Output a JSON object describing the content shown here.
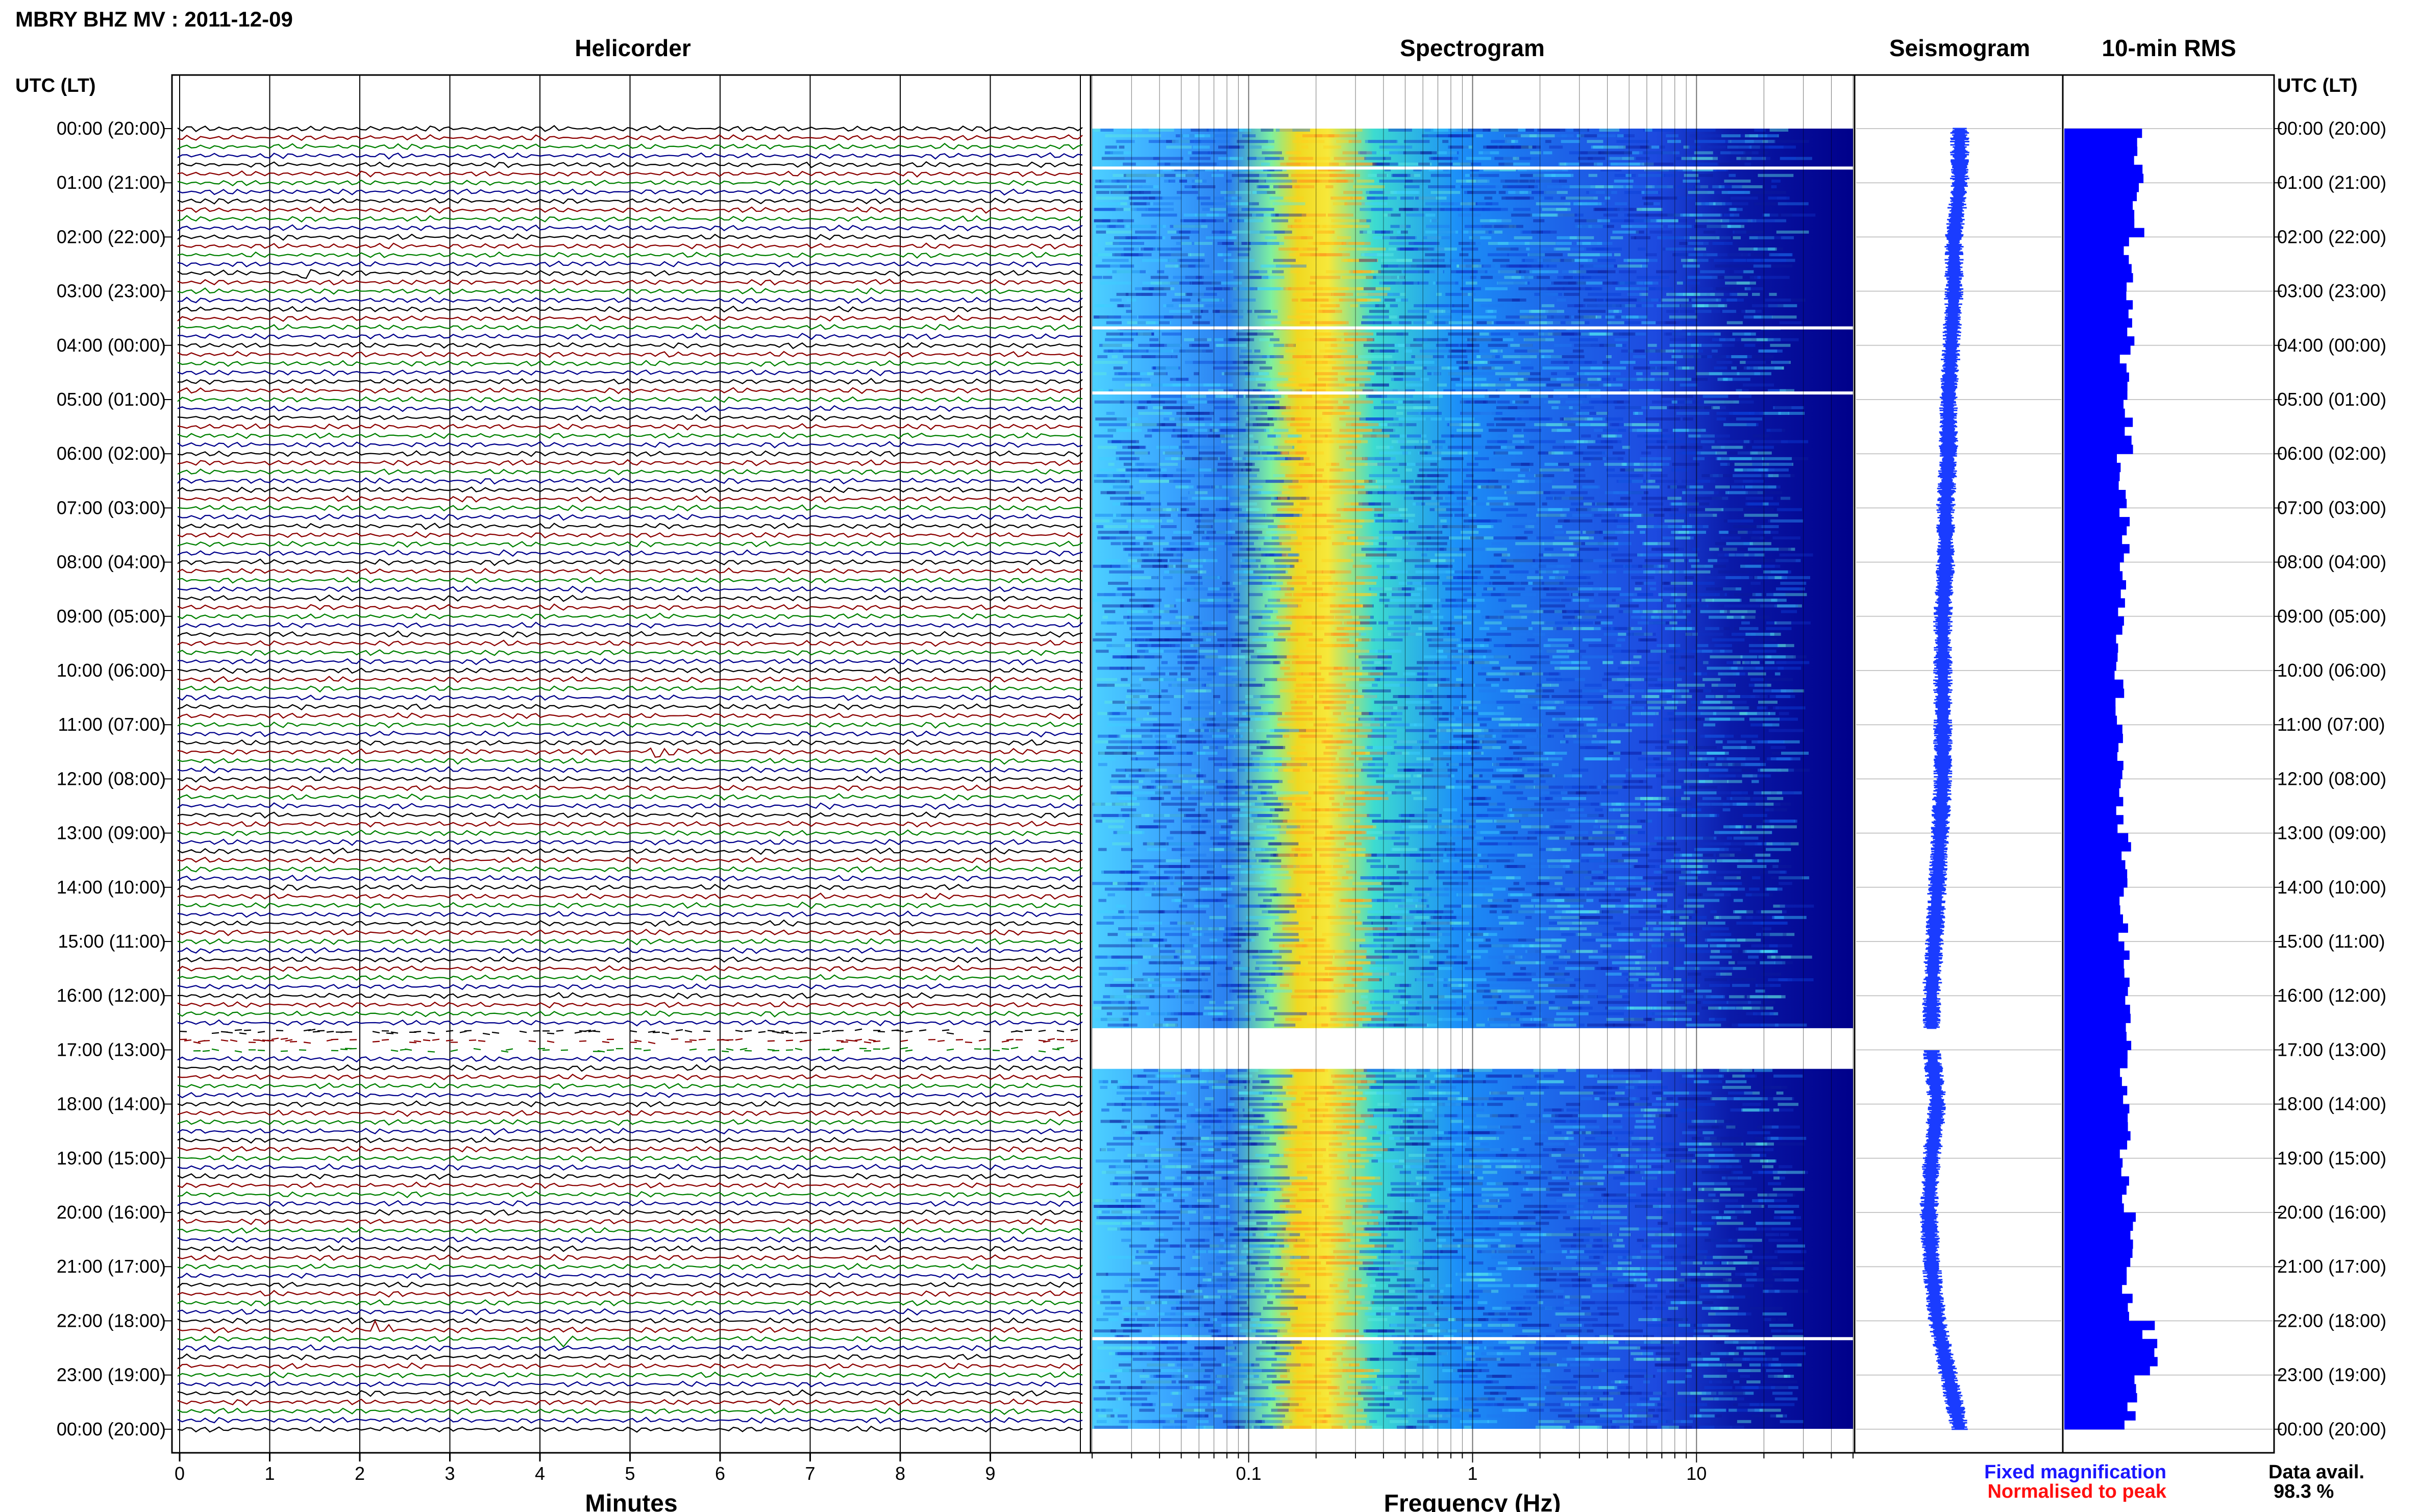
{
  "header": {
    "title": "MBRY BHZ MV : 2011-12-09"
  },
  "panels": {
    "helicorder": "Helicorder",
    "spectrogram": "Spectrogram",
    "seismogram": "Seismogram",
    "rms": "10-min RMS"
  },
  "axes": {
    "time_label_left": "UTC (LT)",
    "time_label_right": "UTC (LT)",
    "helicorder_xlabel": "Minutes",
    "spectrogram_xlabel": "Frequency (Hz)"
  },
  "legend": {
    "fixed": "Fixed magnification",
    "normalised": "Normalised to peak"
  },
  "availability": {
    "label": "Data avail.",
    "value": "98.3 %"
  },
  "colors": {
    "trace_colors": [
      "#000000",
      "#8b0000",
      "#008000",
      "#00008b"
    ],
    "fixed_magnification": "#1b16ff",
    "normalised_to_peak": "#ff1010",
    "rms_bar": "#0000ff",
    "seismogram": "#1a3cff"
  },
  "chart_data": [
    {
      "type": "line",
      "title": "Helicorder",
      "xlabel": "Minutes",
      "ylabel": "UTC (LT)",
      "x_ticks": [
        "0",
        "1",
        "2",
        "3",
        "4",
        "5",
        "6",
        "7",
        "8",
        "9"
      ],
      "xlim": [
        0,
        10
      ],
      "y_ticks": [
        "00:00 (20:00)",
        "01:00 (21:00)",
        "02:00 (22:00)",
        "03:00 (23:00)",
        "04:00 (00:00)",
        "05:00 (01:00)",
        "06:00 (02:00)",
        "07:00 (03:00)",
        "08:00 (04:00)",
        "09:00 (05:00)",
        "10:00 (06:00)",
        "11:00 (07:00)",
        "12:00 (08:00)",
        "13:00 (09:00)",
        "14:00 (10:00)",
        "15:00 (11:00)",
        "16:00 (12:00)",
        "17:00 (13:00)",
        "18:00 (14:00)",
        "19:00 (15:00)",
        "20:00 (16:00)",
        "21:00 (17:00)",
        "22:00 (18:00)",
        "23:00 (19:00)",
        "00:00 (20:00)"
      ],
      "lines_per_hour": 6,
      "events": [
        {
          "hour": 2.7,
          "minute": 1.4,
          "amplitude": 1.6
        },
        {
          "hour": 11.5,
          "minute": 5.3,
          "amplitude": 1.4
        },
        {
          "hour": 22.2,
          "minute": 2.2,
          "amplitude": 2.6
        },
        {
          "hour": 22.3,
          "minute": 4.3,
          "amplitude": 1.8
        }
      ],
      "data_gap_hours": [
        16.65,
        17.0
      ]
    },
    {
      "type": "heatmap",
      "title": "Spectrogram",
      "xlabel": "Frequency (Hz)",
      "x_scale": "log",
      "xlim": [
        0.02,
        50
      ],
      "x_ticks": [
        "0.1",
        "1",
        "10"
      ],
      "peak_frequency_band_hz": [
        0.17,
        0.4
      ],
      "gap_hours": [
        [
          0.7,
          0.75
        ],
        [
          3.65,
          3.7
        ],
        [
          4.85,
          4.9
        ],
        [
          16.6,
          17.35
        ],
        [
          22.3,
          22.35
        ]
      ]
    },
    {
      "type": "line",
      "title": "Seismogram",
      "center_offset": [
        0.0,
        0.0,
        -0.1,
        -0.1,
        -0.15,
        -0.2,
        -0.2,
        -0.25,
        -0.25,
        -0.3,
        -0.3,
        -0.3,
        -0.3,
        -0.35,
        -0.4,
        -0.45,
        -0.5,
        -0.5,
        -0.4,
        -0.5,
        -0.55,
        -0.5,
        -0.4,
        -0.2,
        0.0
      ]
    },
    {
      "type": "bar",
      "title": "10-min RMS",
      "hourly_values": [
        0.55,
        0.55,
        0.48,
        0.5,
        0.46,
        0.48,
        0.44,
        0.45,
        0.43,
        0.42,
        0.42,
        0.44,
        0.42,
        0.46,
        0.44,
        0.46,
        0.48,
        0.45,
        0.46,
        0.47,
        0.52,
        0.48,
        0.65,
        0.5,
        0.5
      ]
    }
  ]
}
